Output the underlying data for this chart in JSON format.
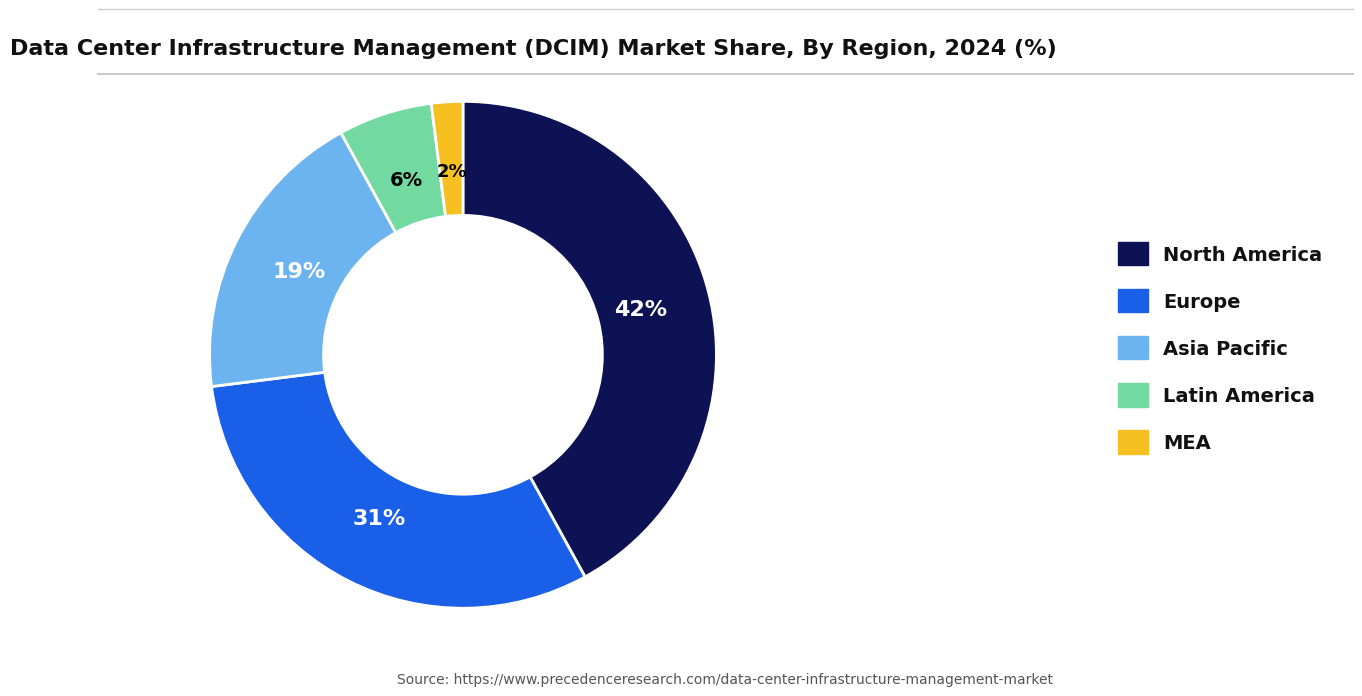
{
  "title": "Data Center Infrastructure Management (DCIM) Market Share, By Region, 2024 (%)",
  "labels": [
    "North America",
    "Europe",
    "Asia Pacific",
    "Latin America",
    "MEA"
  ],
  "values": [
    42,
    31,
    19,
    6,
    2
  ],
  "colors": [
    "#0d1254",
    "#1a5fe8",
    "#6cb4f0",
    "#72d9a0",
    "#f5c020"
  ],
  "pct_labels": [
    "42%",
    "31%",
    "19%",
    "6%",
    "2%"
  ],
  "pct_colors": [
    "white",
    "white",
    "white",
    "black",
    "black"
  ],
  "source_text": "Source: https://www.precedenceresearch.com/data-center-infrastructure-management-market",
  "background_color": "#ffffff",
  "title_fontsize": 16,
  "legend_fontsize": 14
}
